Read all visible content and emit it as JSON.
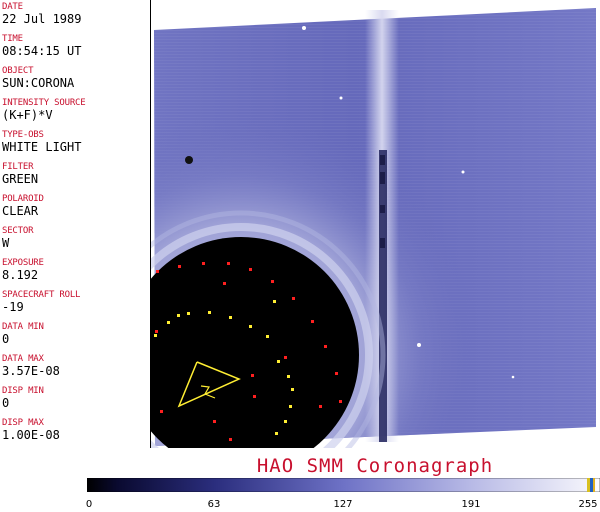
{
  "sidebar": {
    "fields": [
      {
        "label": "DATE",
        "value": "22 Jul 1989"
      },
      {
        "label": "TIME",
        "value": "08:54:15 UT"
      },
      {
        "label": "OBJECT",
        "value": "SUN:CORONA"
      },
      {
        "label": "INTENSITY SOURCE",
        "value": "(K+F)*V"
      },
      {
        "label": "TYPE-OBS",
        "value": "WHITE LIGHT"
      },
      {
        "label": "FILTER",
        "value": "GREEN"
      },
      {
        "label": "POLAROID",
        "value": "CLEAR"
      },
      {
        "label": "SECTOR",
        "value": "W"
      },
      {
        "label": "EXPOSURE",
        "value": "8.192"
      },
      {
        "label": "SPACECRAFT ROLL",
        "value": "-19"
      },
      {
        "label": "DATA MIN",
        "value": "0"
      },
      {
        "label": "DATA MAX",
        "value": "3.57E-08"
      },
      {
        "label": "DISP MIN",
        "value": "0"
      },
      {
        "label": "DISP MAX",
        "value": "1.00E-08"
      }
    ]
  },
  "title": "HAO  SMM Coronagraph",
  "colorbar": {
    "min": 0,
    "max": 255,
    "ticks": [
      "0",
      "63",
      "127",
      "191",
      "255"
    ]
  },
  "colors": {
    "label_red": "#c8102e",
    "corona_blue": "#5e62b8",
    "occulter": "#000000"
  }
}
